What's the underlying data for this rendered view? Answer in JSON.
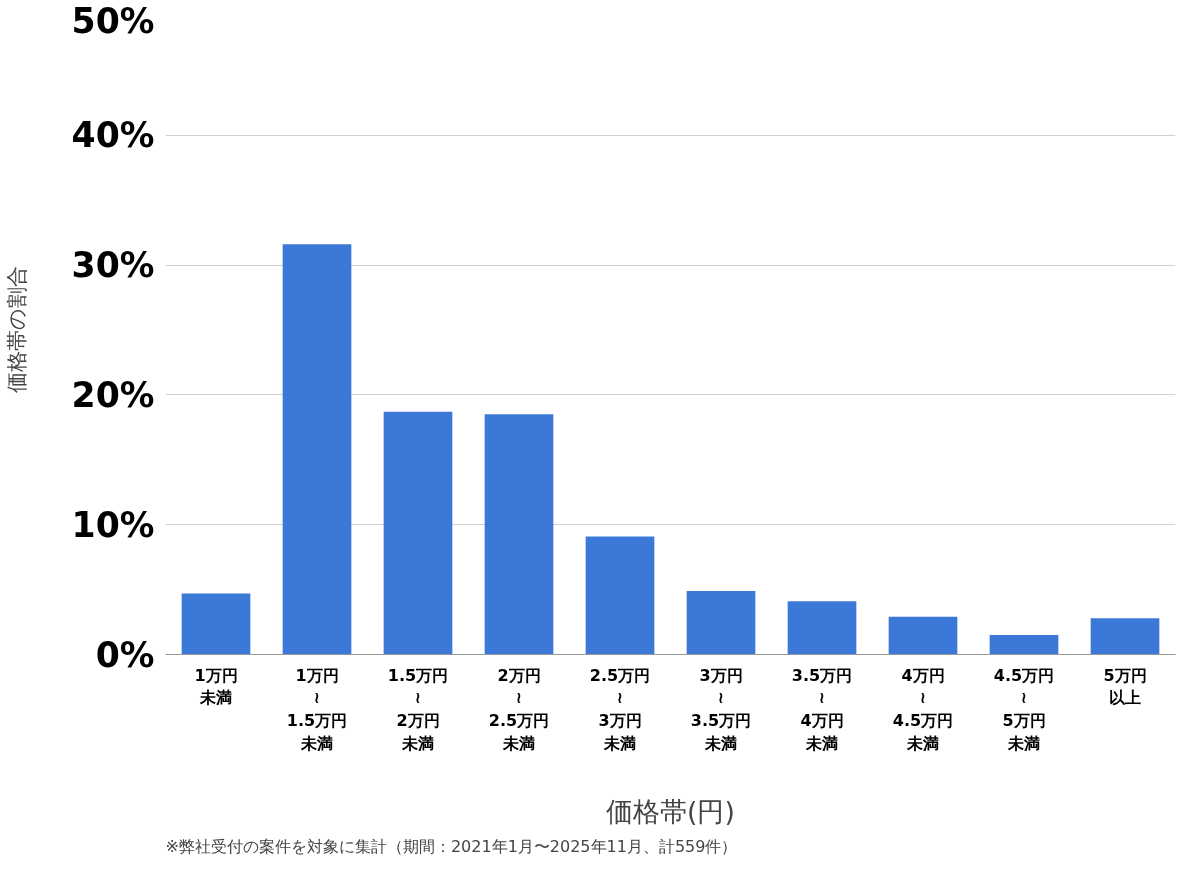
{
  "chart_data": {
    "type": "bar",
    "xlabel": "価格帯(円)",
    "ylabel": "価格帯の割合",
    "categories": [
      "1万円未満",
      "1万円≀1.5万円未満",
      "1.5万円≀2万円未満",
      "2万円≀2.5万円未満",
      "2.5万円≀3万円未満",
      "3万円≀3.5万円未満",
      "3.5万円≀4万円未満",
      "4万円≀4.5万円未満",
      "4.5万円≀5万円未満",
      "5万円以上"
    ],
    "values": [
      4.7,
      31.6,
      18.7,
      18.5,
      9.1,
      4.9,
      4.1,
      2.9,
      1.5,
      2.8
    ],
    "color": "#3c78d8",
    "ylim": [
      0,
      50
    ],
    "yticks": [
      {
        "value": 0,
        "label": "0%"
      },
      {
        "value": 10,
        "label": "10%"
      },
      {
        "value": 20,
        "label": "20%"
      },
      {
        "value": 30,
        "label": "30%"
      },
      {
        "value": 40,
        "label": "40%"
      },
      {
        "value": 50,
        "label": "50%"
      }
    ],
    "grid": "y",
    "annotations": [
      "※弊社受付の案件を対象に集計（期間：2021年1月〜2025年11月、計559件）"
    ]
  }
}
